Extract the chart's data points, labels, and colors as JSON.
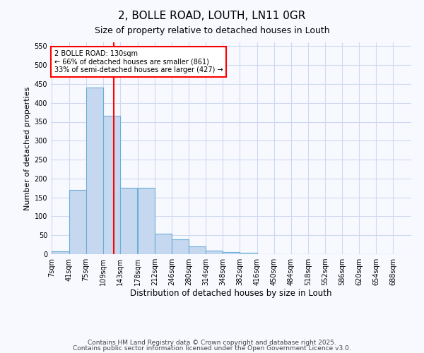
{
  "title": "2, BOLLE ROAD, LOUTH, LN11 0GR",
  "subtitle": "Size of property relative to detached houses in Louth",
  "xlabel": "Distribution of detached houses by size in Louth",
  "ylabel": "Number of detached properties",
  "bin_edges": [
    7,
    41,
    75,
    109,
    143,
    178,
    212,
    246,
    280,
    314,
    348,
    382,
    416,
    450,
    484,
    518,
    552,
    586,
    620,
    654,
    688
  ],
  "bar_heights": [
    8,
    170,
    440,
    365,
    175,
    175,
    55,
    40,
    20,
    10,
    5,
    4,
    0,
    0,
    0,
    0,
    0,
    0,
    0,
    0
  ],
  "bar_color": "#c5d8f0",
  "bar_edge_color": "#6baed6",
  "background_color": "#f7f9ff",
  "grid_color": "#d0d8f0",
  "red_line_x": 130,
  "annotation_text": "2 BOLLE ROAD: 130sqm\n← 66% of detached houses are smaller (861)\n33% of semi-detached houses are larger (427) →",
  "ylim": [
    0,
    560
  ],
  "yticks": [
    0,
    50,
    100,
    150,
    200,
    250,
    300,
    350,
    400,
    450,
    500,
    550
  ],
  "footnote1": "Contains HM Land Registry data © Crown copyright and database right 2025.",
  "footnote2": "Contains public sector information licensed under the Open Government Licence v3.0.",
  "tick_labels": [
    "7sqm",
    "41sqm",
    "75sqm",
    "109sqm",
    "143sqm",
    "178sqm",
    "212sqm",
    "246sqm",
    "280sqm",
    "314sqm",
    "348sqm",
    "382sqm",
    "416sqm",
    "450sqm",
    "484sqm",
    "518sqm",
    "552sqm",
    "586sqm",
    "620sqm",
    "654sqm",
    "688sqm"
  ]
}
